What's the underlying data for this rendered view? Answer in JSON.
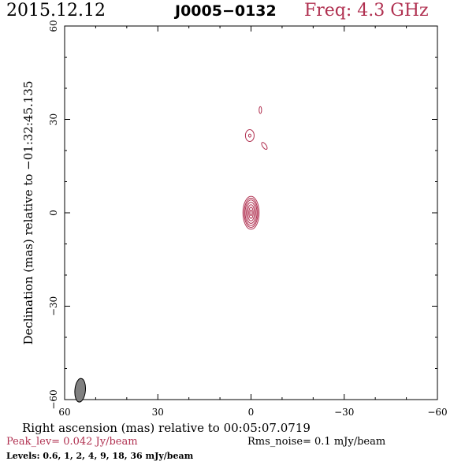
{
  "header": {
    "date": "2015.12.12",
    "source": "J0005−0132",
    "freq": "Freq: 4.3 GHz"
  },
  "footer": {
    "peak": "Peak_lev=  0.042 Jy/beam",
    "rms": "Rms_noise=  0.1 mJy/beam",
    "levels": "Levels: 0.6,  1,  2,  4,  9,  18,  36 mJy/beam"
  },
  "colors": {
    "contour": "#b03050",
    "text": "#000000",
    "beam": "#808080"
  },
  "chart_data": {
    "type": "contour",
    "xlabel": "Right ascension (mas) relative to 00:05:07.0719",
    "ylabel": "Declination (mas) relative to −01:32:45.135",
    "xlim": [
      60,
      -60
    ],
    "ylim": [
      -60,
      60
    ],
    "xticks": [
      {
        "value": 60,
        "label": "60"
      },
      {
        "value": 30,
        "label": "30"
      },
      {
        "value": 0,
        "label": "0"
      },
      {
        "value": -30,
        "label": "−30"
      },
      {
        "value": -60,
        "label": "−60"
      }
    ],
    "yticks": [
      {
        "value": -60,
        "label": "−60"
      },
      {
        "value": -30,
        "label": "−30"
      },
      {
        "value": 0,
        "label": "0"
      },
      {
        "value": 30,
        "label": "30"
      },
      {
        "value": 60,
        "label": "60"
      }
    ],
    "contour_components": [
      {
        "x": 0.0,
        "y": 0.0,
        "rings": [
          {
            "rx": 2.6,
            "ry": 5.3
          },
          {
            "rx": 2.2,
            "ry": 4.7
          },
          {
            "rx": 1.9,
            "ry": 4.1
          },
          {
            "rx": 1.5,
            "ry": 3.4
          },
          {
            "rx": 1.1,
            "ry": 2.6
          },
          {
            "rx": 0.7,
            "ry": 1.8
          },
          {
            "rx": 0.35,
            "ry": 0.9
          }
        ]
      },
      {
        "x": 0.4,
        "y": 24.8,
        "rings": [
          {
            "rx": 1.4,
            "ry": 1.9
          },
          {
            "rx": 0.4,
            "ry": 0.5
          }
        ]
      },
      {
        "x": -4.3,
        "y": 21.5,
        "rings": [
          {
            "rx": 0.6,
            "ry": 1.3,
            "angle": -35
          }
        ]
      },
      {
        "x": -3.0,
        "y": 33.0,
        "rings": [
          {
            "rx": 0.4,
            "ry": 1.1
          }
        ]
      }
    ],
    "beam": {
      "x": 55.0,
      "y": -57.0,
      "major": 3.8,
      "minor": 1.7,
      "pa": 5
    }
  }
}
